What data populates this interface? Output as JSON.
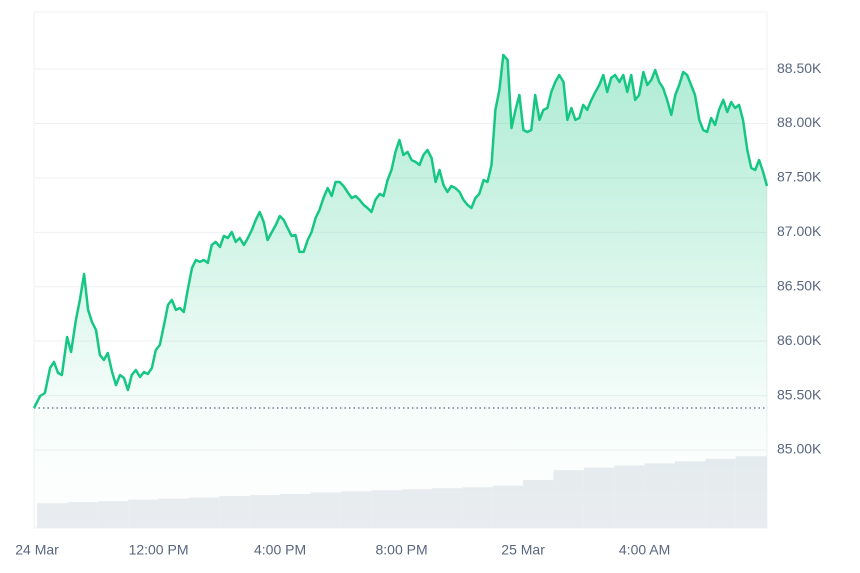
{
  "chart_data": {
    "type": "area",
    "grid": true,
    "x": [
      7.9,
      8.1,
      8.26,
      8.43,
      8.56,
      8.69,
      8.82,
      8.99,
      9.12,
      9.28,
      9.41,
      9.55,
      9.68,
      9.81,
      9.94,
      10.07,
      10.2,
      10.33,
      10.47,
      10.6,
      10.73,
      10.86,
      10.99,
      11.12,
      11.25,
      11.39,
      11.52,
      11.65,
      11.78,
      11.91,
      12.04,
      12.18,
      12.31,
      12.44,
      12.57,
      12.7,
      12.83,
      12.96,
      13.1,
      13.23,
      13.36,
      13.49,
      13.62,
      13.75,
      13.88,
      14.02,
      14.15,
      14.28,
      14.41,
      14.54,
      14.67,
      14.81,
      14.94,
      15.07,
      15.2,
      15.33,
      15.46,
      15.59,
      15.73,
      15.86,
      15.99,
      16.12,
      16.25,
      16.38,
      16.51,
      16.64,
      16.78,
      16.91,
      17.04,
      17.17,
      17.3,
      17.43,
      17.57,
      17.7,
      17.83,
      17.96,
      18.09,
      18.22,
      18.36,
      18.49,
      18.62,
      18.75,
      18.88,
      19.01,
      19.14,
      19.28,
      19.41,
      19.54,
      19.67,
      19.8,
      19.93,
      20.06,
      20.2,
      20.33,
      20.46,
      20.59,
      20.72,
      20.85,
      20.99,
      21.12,
      21.25,
      21.38,
      21.51,
      21.64,
      21.77,
      21.91,
      22.04,
      22.17,
      22.3,
      22.43,
      22.56,
      22.7,
      22.83,
      22.96,
      23.09,
      23.22,
      23.35,
      23.49,
      23.62,
      23.75,
      23.88,
      24.01,
      24.14,
      24.27,
      24.4,
      24.54,
      24.67,
      24.8,
      24.93,
      25.06,
      25.19,
      25.33,
      25.46,
      25.59,
      25.72,
      25.85,
      25.98,
      26.11,
      26.25,
      26.38,
      26.51,
      26.64,
      26.77,
      26.9,
      27.03,
      27.17,
      27.3,
      27.43,
      27.56,
      27.69,
      27.82,
      27.96,
      28.09,
      28.22,
      28.35,
      28.48,
      28.61,
      28.74,
      28.88,
      29.01,
      29.14,
      29.27,
      29.4,
      29.53,
      29.66,
      29.8,
      29.93,
      30.06,
      30.19,
      30.32,
      30.45,
      30.59,
      30.72,
      30.85,
      30.98,
      31.11,
      31.24,
      31.38,
      31.51,
      31.64,
      31.77,
      31.9,
      32.03
    ],
    "series": [
      {
        "color": "#16c784",
        "values": [
          85386,
          85496,
          85524,
          85754,
          85809,
          85708,
          85689,
          86038,
          85901,
          86195,
          86379,
          86617,
          86287,
          86176,
          86103,
          85873,
          85827,
          85891,
          85717,
          85597,
          85689,
          85662,
          85551,
          85689,
          85735,
          85671,
          85717,
          85698,
          85754,
          85919,
          85965,
          86149,
          86333,
          86379,
          86287,
          86305,
          86268,
          86470,
          86673,
          86746,
          86728,
          86746,
          86719,
          86884,
          86912,
          86866,
          86967,
          86948,
          87003,
          86912,
          86948,
          86884,
          86948,
          87022,
          87114,
          87187,
          87095,
          86930,
          87003,
          87068,
          87150,
          87114,
          87040,
          86967,
          86976,
          86820,
          86820,
          86930,
          87003,
          87132,
          87206,
          87316,
          87408,
          87334,
          87463,
          87463,
          87426,
          87371,
          87316,
          87334,
          87298,
          87252,
          87224,
          87187,
          87298,
          87353,
          87334,
          87481,
          87573,
          87739,
          87849,
          87711,
          87739,
          87665,
          87647,
          87619,
          87711,
          87757,
          87683,
          87463,
          87573,
          87435,
          87371,
          87426,
          87408,
          87371,
          87298,
          87252,
          87224,
          87316,
          87353,
          87481,
          87463,
          87619,
          88125,
          88308,
          88630,
          88584,
          87959,
          88125,
          88262,
          87941,
          87922,
          87941,
          88262,
          88033,
          88125,
          88143,
          88290,
          88382,
          88446,
          88382,
          88033,
          88143,
          88033,
          88051,
          88171,
          88125,
          88217,
          88290,
          88354,
          88446,
          88290,
          88419,
          88446,
          88382,
          88446,
          88290,
          88446,
          88217,
          88262,
          88474,
          88354,
          88400,
          88492,
          88382,
          88327,
          88217,
          88079,
          88262,
          88354,
          88474,
          88446,
          88354,
          88262,
          88033,
          87941,
          87922,
          88051,
          87987,
          88125,
          88217,
          88106,
          88198,
          88143,
          88171,
          88033,
          87757,
          87592,
          87573,
          87665,
          87555,
          87426
        ]
      },
      {
        "type": "bar",
        "axis": "y2",
        "color": "#e9ecf0",
        "x": [
          8,
          9,
          10,
          11,
          12,
          13,
          14,
          15,
          16,
          17,
          18,
          19,
          20,
          21,
          22,
          23,
          24,
          25,
          26,
          27,
          28,
          29,
          30,
          31
        ],
        "values": [
          4.8,
          5.0,
          5.2,
          5.5,
          5.7,
          5.9,
          6.2,
          6.4,
          6.6,
          6.9,
          7.1,
          7.3,
          7.5,
          7.7,
          7.9,
          8.2,
          9.3,
          11.2,
          11.7,
          12.1,
          12.5,
          12.9,
          13.4,
          13.9
        ]
      }
    ],
    "xlim": [
      7.9,
      32.03
    ],
    "xticks": [
      {
        "value": 8,
        "label": "24 Mar"
      },
      {
        "value": 12,
        "label": "12:00 PM"
      },
      {
        "value": 16,
        "label": "4:00 PM"
      },
      {
        "value": 20,
        "label": "8:00 PM"
      },
      {
        "value": 24,
        "label": "25 Mar"
      },
      {
        "value": 28,
        "label": "4:00 AM"
      }
    ],
    "ylim": [
      84283,
      89025
    ],
    "yticks": [
      {
        "value": 85000,
        "label": "85.00K"
      },
      {
        "value": 85500,
        "label": "85.50K"
      },
      {
        "value": 86000,
        "label": "86.00K"
      },
      {
        "value": 86500,
        "label": "86.50K"
      },
      {
        "value": 87000,
        "label": "87.00K"
      },
      {
        "value": 87500,
        "label": "87.50K"
      },
      {
        "value": 88000,
        "label": "88.00K"
      },
      {
        "value": 88500,
        "label": "88.50K"
      }
    ],
    "y2lim": [
      0,
      100
    ]
  }
}
